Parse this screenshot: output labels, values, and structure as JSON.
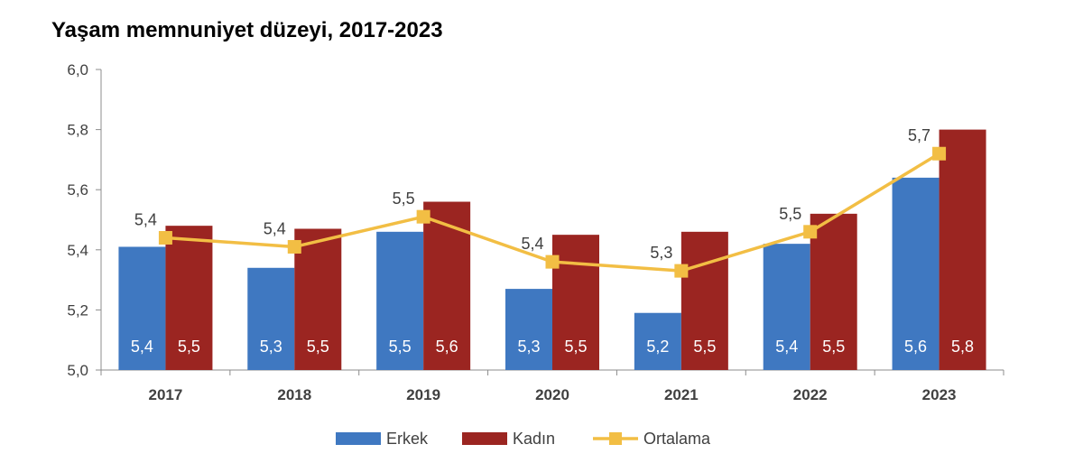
{
  "chart_data": {
    "type": "bar",
    "title": "Yaşam memnuniyet düzeyi, 2017-2023",
    "categories": [
      "2017",
      "2018",
      "2019",
      "2020",
      "2021",
      "2022",
      "2023"
    ],
    "ylim": [
      5.0,
      6.0
    ],
    "yticks": [
      "5,0",
      "5,2",
      "5,4",
      "5,6",
      "5,8",
      "6,0"
    ],
    "series": [
      {
        "name": "Erkek",
        "type": "bar",
        "color": "#3F78C1",
        "values": [
          5.41,
          5.34,
          5.46,
          5.27,
          5.19,
          5.42,
          5.64
        ],
        "labels": [
          "5,4",
          "5,3",
          "5,5",
          "5,3",
          "5,2",
          "5,4",
          "5,6"
        ]
      },
      {
        "name": "Kadın",
        "type": "bar",
        "color": "#9B2521",
        "values": [
          5.48,
          5.47,
          5.56,
          5.45,
          5.46,
          5.52,
          5.8
        ],
        "labels": [
          "5,5",
          "5,5",
          "5,6",
          "5,5",
          "5,5",
          "5,5",
          "5,8"
        ]
      },
      {
        "name": "Ortalama",
        "type": "line",
        "color": "#F2BE44",
        "values": [
          5.44,
          5.41,
          5.51,
          5.36,
          5.33,
          5.46,
          5.72
        ],
        "labels": [
          "5,4",
          "5,4",
          "5,5",
          "5,4",
          "5,3",
          "5,5",
          "5,7"
        ]
      }
    ],
    "legend": "bottom-center",
    "grid": false
  }
}
